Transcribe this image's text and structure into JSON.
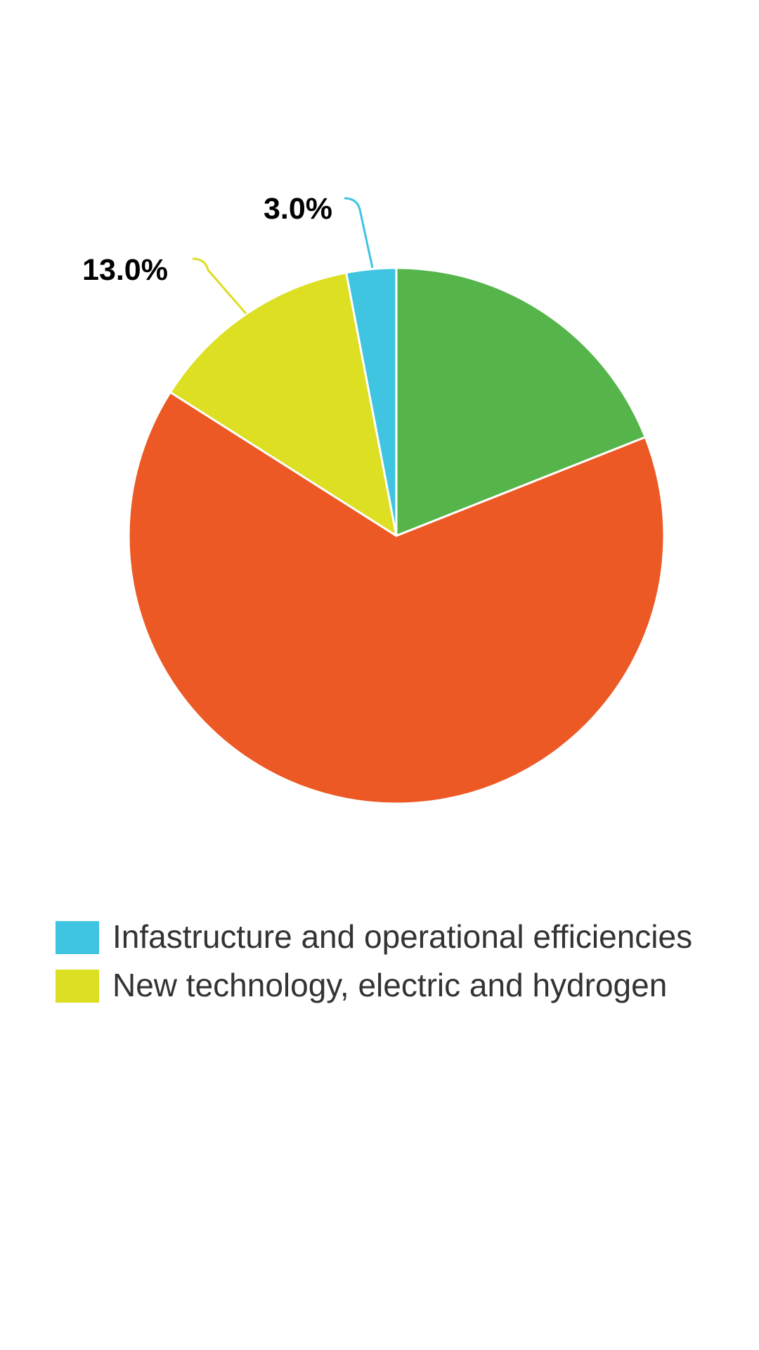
{
  "chart_data": {
    "type": "pie",
    "title": "",
    "start_angle_deg": 0,
    "direction": "clockwise",
    "slices": [
      {
        "name": "",
        "value": 19.0,
        "color": "#55b54a",
        "label": ""
      },
      {
        "name": "",
        "value": 65.0,
        "color": "#ec5925",
        "label": ""
      },
      {
        "name": "New technology, electric and hydrogen",
        "value": 13.0,
        "color": "#dcdf22",
        "label": "13.0%"
      },
      {
        "name": "Infastructure and operational efficiencies",
        "value": 3.0,
        "color": "#3fc4e1",
        "label": "3.0%"
      }
    ],
    "legend": {
      "placement": "bottom",
      "items": [
        {
          "name": "Infastructure and operational efficiencies",
          "color": "#3fc4e1"
        },
        {
          "name": "New technology, electric and hydrogen",
          "color": "#dcdf22"
        }
      ]
    }
  }
}
